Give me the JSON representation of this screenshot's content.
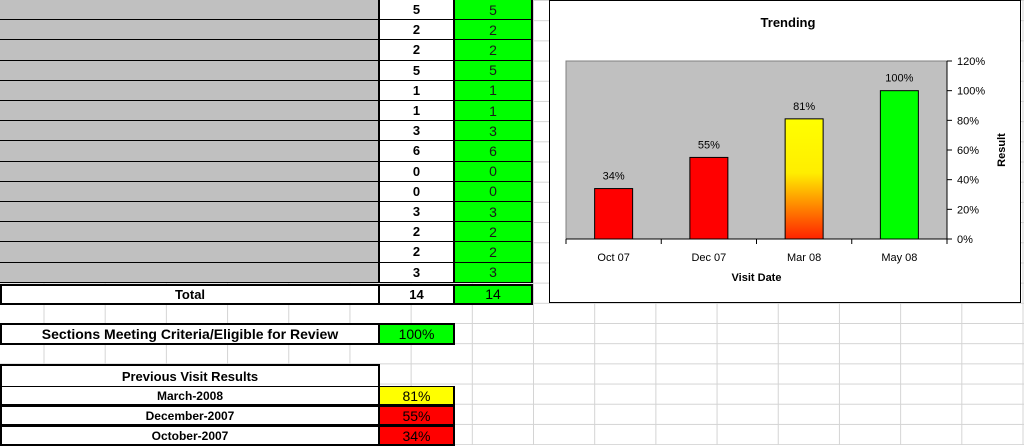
{
  "sheet": {
    "row_values": [
      {
        "count": "5",
        "eligible": "5"
      },
      {
        "count": "2",
        "eligible": "2"
      },
      {
        "count": "2",
        "eligible": "2"
      },
      {
        "count": "5",
        "eligible": "5"
      },
      {
        "count": "1",
        "eligible": "1"
      },
      {
        "count": "1",
        "eligible": "1"
      },
      {
        "count": "3",
        "eligible": "3"
      },
      {
        "count": "6",
        "eligible": "6"
      },
      {
        "count": "0",
        "eligible": "0"
      },
      {
        "count": "0",
        "eligible": "0"
      },
      {
        "count": "3",
        "eligible": "3"
      },
      {
        "count": "2",
        "eligible": "2"
      },
      {
        "count": "2",
        "eligible": "2"
      },
      {
        "count": "3",
        "eligible": "3"
      }
    ],
    "total_label": "Total",
    "total_count": "14",
    "total_eligible": "14",
    "criteria_label": "Sections Meeting Criteria/Eligible for Review",
    "criteria_value": "100%",
    "previous_header": "Previous Visit Results",
    "previous": [
      {
        "label": "March-2008",
        "value": "81%",
        "color": "#ffff00"
      },
      {
        "label": "December-2007",
        "value": "55%",
        "color": "#ff0000"
      },
      {
        "label": "October-2007",
        "value": "34%",
        "color": "#ff0000"
      }
    ]
  },
  "chart_data": {
    "type": "bar",
    "title": "Trending",
    "xlabel": "Visit Date",
    "ylabel": "Result",
    "categories": [
      "Oct 07",
      "Dec 07",
      "Mar 08",
      "May 08"
    ],
    "values": [
      34,
      55,
      81,
      100
    ],
    "data_labels": [
      "34%",
      "55%",
      "81%",
      "100%"
    ],
    "bar_colors": [
      "#ff0000",
      "#ff0000",
      "gradient-yellow-red",
      "#00ff00"
    ],
    "ylim": [
      0,
      120
    ],
    "yticks": [
      0,
      20,
      40,
      60,
      80,
      100,
      120
    ],
    "ytick_labels": [
      "0%",
      "20%",
      "40%",
      "60%",
      "80%",
      "100%",
      "120%"
    ],
    "y_axis_side": "right",
    "plot_background": "#c0c0c0",
    "grid": false,
    "legend": "none"
  }
}
